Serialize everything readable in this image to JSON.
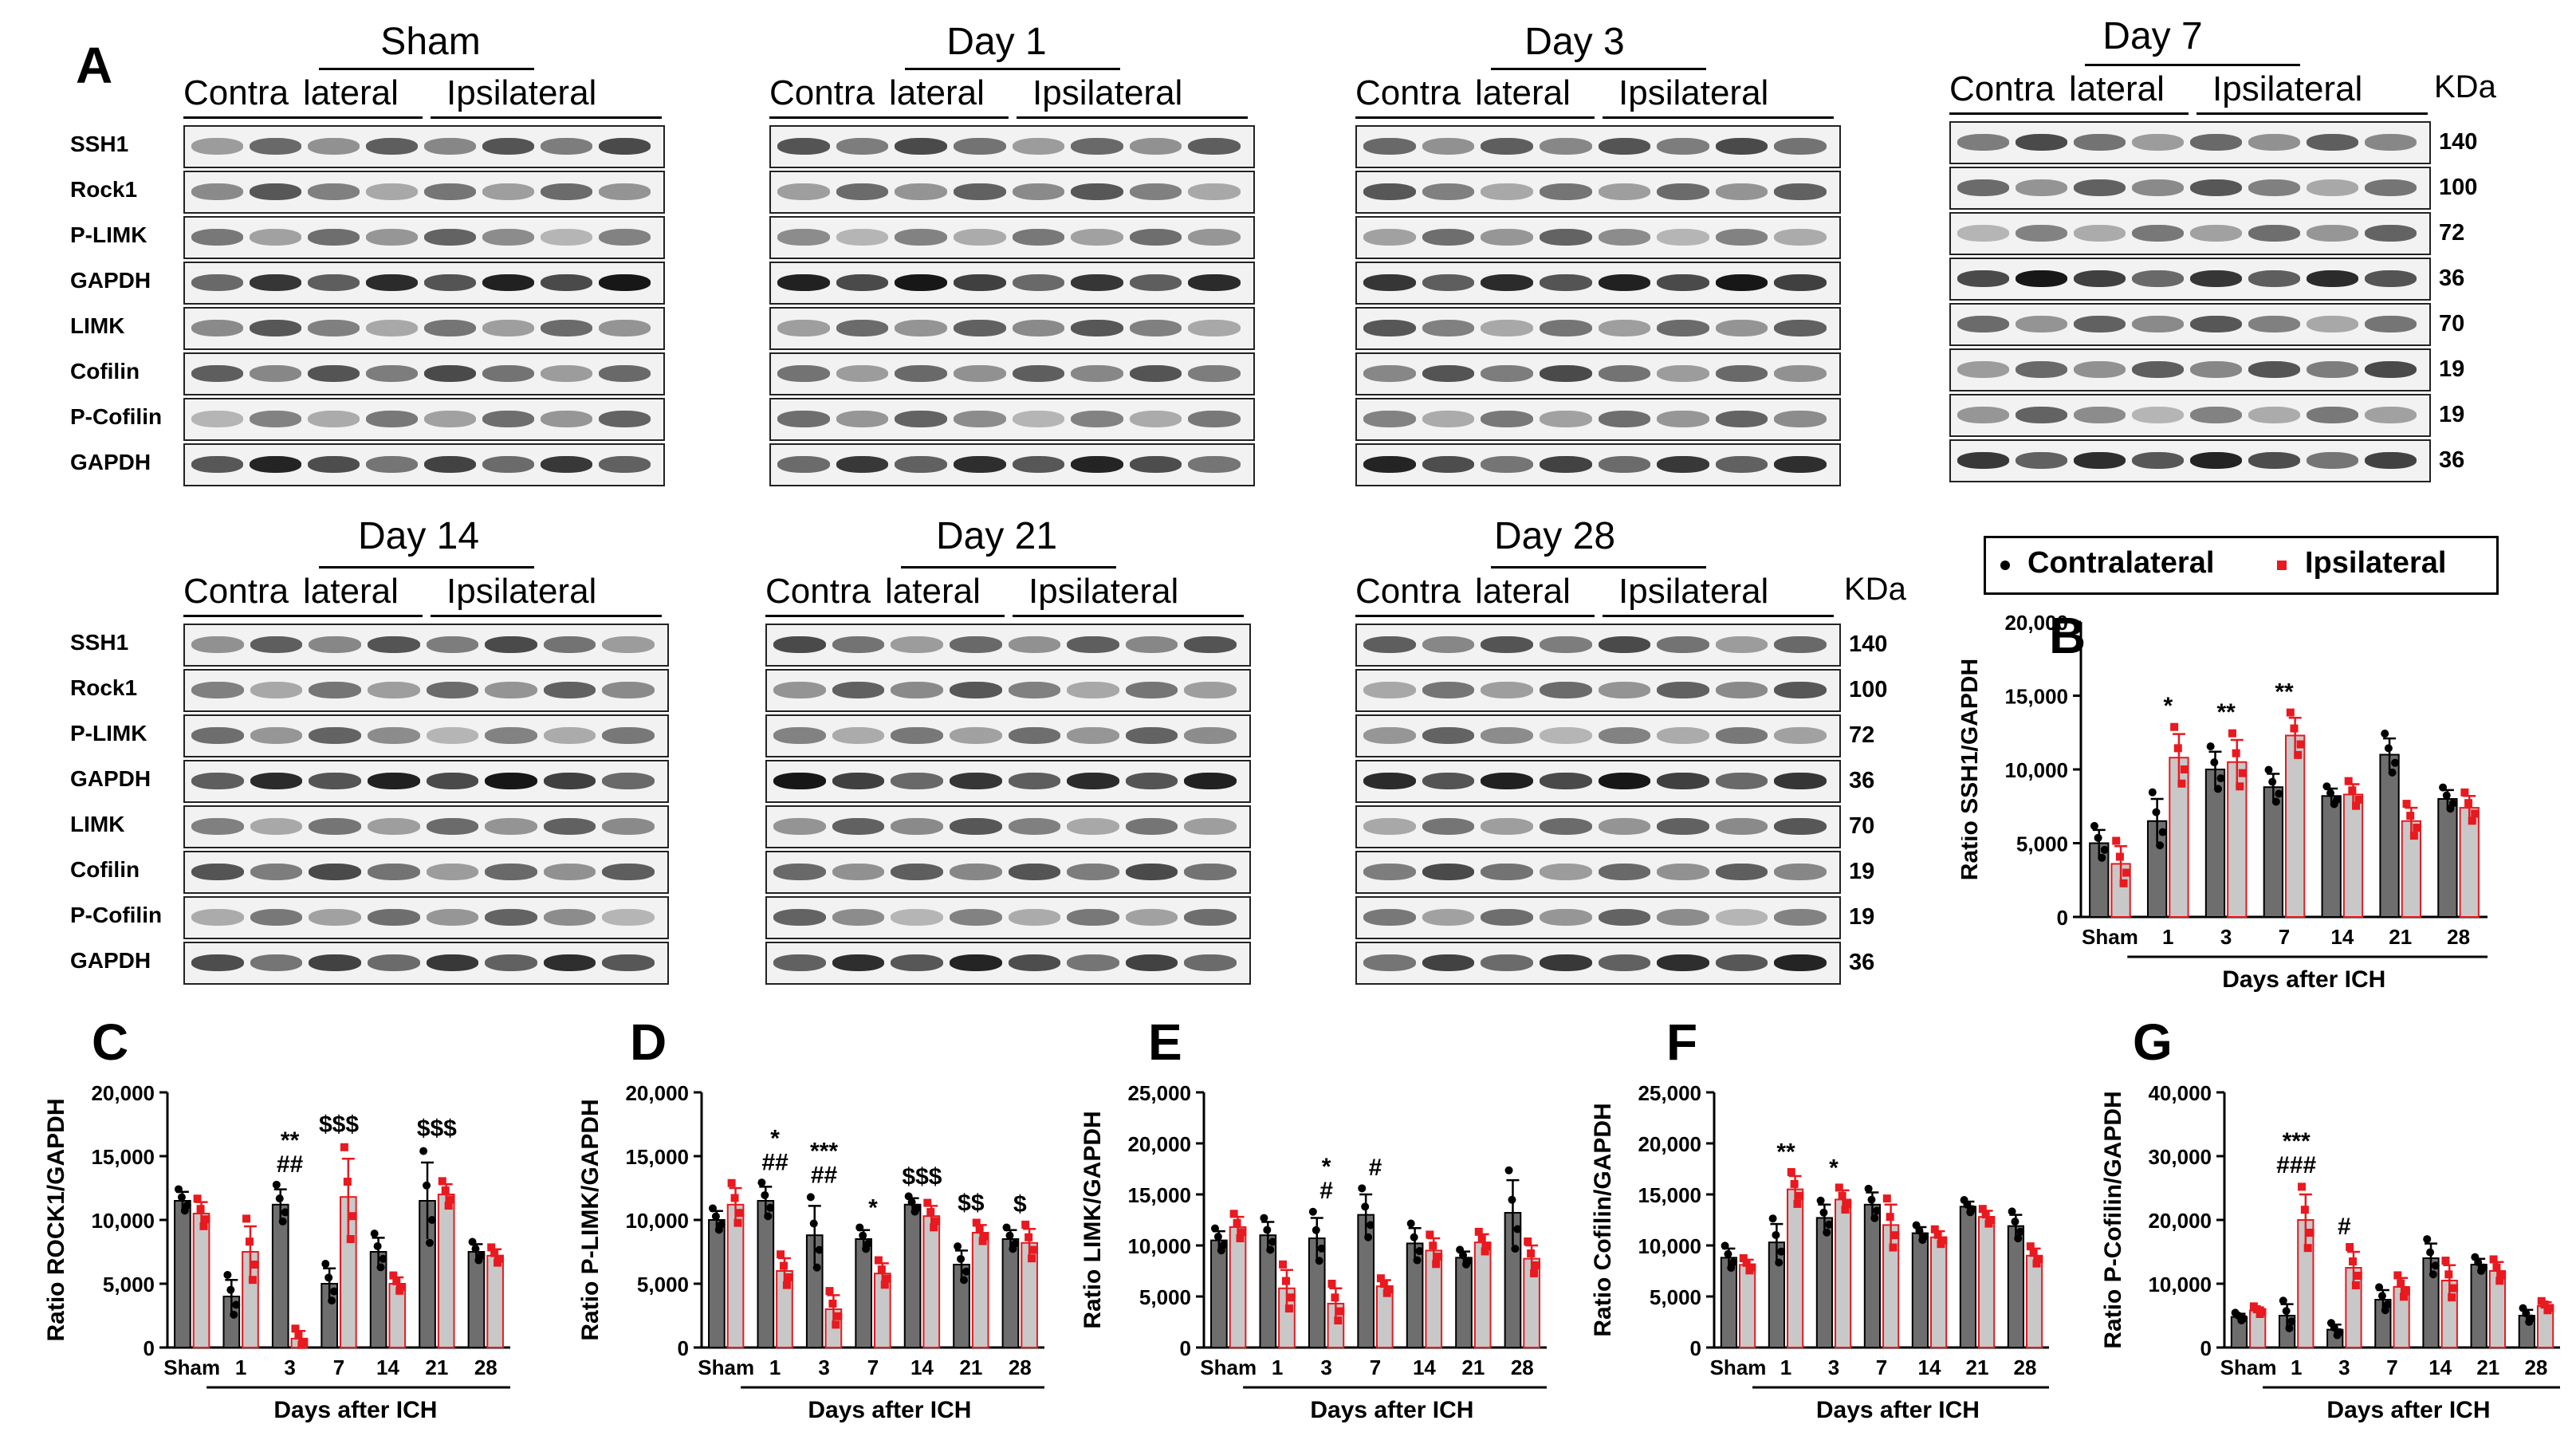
{
  "panel_A": {
    "letter": "A",
    "kda_header": "KDa",
    "blots": [
      {
        "title": "Sham",
        "left": "Contra",
        "mid": "lateral",
        "right": "Ipsilateral",
        "rows": [
          "SSH1",
          "Rock1",
          "P-LIMK",
          "GAPDH",
          "LIMK",
          "Cofilin",
          "P-Cofilin",
          "GAPDH"
        ],
        "kda": []
      },
      {
        "title": "Day 1",
        "left": "Contra",
        "mid": "lateral",
        "right": "Ipsilateral",
        "rows": [],
        "kda": []
      },
      {
        "title": "Day 3",
        "left": "Contra",
        "mid": "lateral",
        "right": "Ipsilateral",
        "rows": [],
        "kda": []
      },
      {
        "title": "Day 7",
        "left": "Contra",
        "mid": "lateral",
        "right": "Ipsilateral",
        "rows": [],
        "kda": [
          "140",
          "100",
          "72",
          "36",
          "70",
          "19",
          "19",
          "36"
        ]
      },
      {
        "title": "Day 14",
        "left": "Contra",
        "mid": "lateral",
        "right": "Ipsilateral",
        "rows": [
          "SSH1",
          "Rock1",
          "P-LIMK",
          "GAPDH",
          "LIMK",
          "Cofilin",
          "P-Cofilin",
          "GAPDH"
        ],
        "kda": []
      },
      {
        "title": "Day 21",
        "left": "Contra",
        "mid": "lateral",
        "right": "Ipsilateral",
        "rows": [],
        "kda": []
      },
      {
        "title": "Day 28",
        "left": "Contra",
        "mid": "lateral",
        "right": "Ipsilateral",
        "rows": [],
        "kda": [
          "140",
          "100",
          "72",
          "36",
          "70",
          "19",
          "19",
          "36"
        ]
      }
    ]
  },
  "legend": {
    "items": [
      {
        "label": "Contralateral",
        "color": "#000000",
        "marker": "circle"
      },
      {
        "label": "Ipsilateral",
        "color": "#e8191f",
        "marker": "square"
      }
    ]
  },
  "colors": {
    "contralateral_bar": "#6e6e6e",
    "ipsilateral_bar": "#c8c8c8",
    "ipsilateral_accent": "#e8191f"
  },
  "chart_data": [
    {
      "panel": "B",
      "type": "bar",
      "ylabel": "Ratio SSH1/GAPDH",
      "xlabel": "Days after ICH",
      "categories": [
        "Sham",
        "1",
        "3",
        "7",
        "14",
        "21",
        "28"
      ],
      "ylim": [
        0,
        20000
      ],
      "yticks": [
        "0",
        "5,000",
        "10,000",
        "15,000",
        "20,000"
      ],
      "series": [
        {
          "name": "Contralateral",
          "values": [
            5000,
            6500,
            10000,
            8800,
            8200,
            11000,
            8000
          ],
          "err": [
            900,
            1500,
            1200,
            900,
            500,
            1100,
            600
          ]
        },
        {
          "name": "Ipsilateral",
          "values": [
            3600,
            10800,
            10500,
            12300,
            8300,
            6500,
            7400
          ],
          "err": [
            1200,
            1600,
            1500,
            1200,
            700,
            900,
            800
          ]
        }
      ],
      "annotations": [
        {
          "category": "1",
          "text": "*"
        },
        {
          "category": "3",
          "text": "**"
        },
        {
          "category": "7",
          "text": "**"
        }
      ]
    },
    {
      "panel": "C",
      "type": "bar",
      "ylabel": "Ratio ROCK1/GAPDH",
      "xlabel": "Days after ICH",
      "categories": [
        "Sham",
        "1",
        "3",
        "7",
        "14",
        "21",
        "28"
      ],
      "ylim": [
        0,
        20000
      ],
      "yticks": [
        "0",
        "5,000",
        "10,000",
        "15,000",
        "20,000"
      ],
      "series": [
        {
          "name": "Contralateral",
          "values": [
            11500,
            4000,
            11200,
            5000,
            7500,
            11500,
            7500
          ],
          "err": [
            700,
            1300,
            1200,
            1200,
            1100,
            3000,
            600
          ]
        },
        {
          "name": "Ipsilateral",
          "values": [
            10500,
            7500,
            700,
            11800,
            5000,
            12000,
            7200
          ],
          "err": [
            900,
            2000,
            600,
            3000,
            500,
            800,
            500
          ]
        }
      ],
      "annotations": [
        {
          "category": "3",
          "text": "##"
        },
        {
          "category": "3",
          "text": "**"
        },
        {
          "category": "7",
          "text": "$$$"
        },
        {
          "category": "21",
          "text": "$$$"
        }
      ]
    },
    {
      "panel": "D",
      "type": "bar",
      "ylabel": "Ratio P-LIMK/GAPDH",
      "xlabel": "Days after ICH",
      "categories": [
        "Sham",
        "1",
        "3",
        "7",
        "14",
        "21",
        "28"
      ],
      "ylim": [
        0,
        20000
      ],
      "yticks": [
        "0",
        "5,000",
        "10,000",
        "15,000",
        "20,000"
      ],
      "series": [
        {
          "name": "Contralateral",
          "values": [
            10000,
            11500,
            8800,
            8500,
            11200,
            6500,
            8500
          ],
          "err": [
            700,
            1100,
            2300,
            700,
            500,
            1100,
            700
          ]
        },
        {
          "name": "Ipsilateral",
          "values": [
            11200,
            6000,
            3000,
            5800,
            10300,
            9000,
            8200
          ],
          "err": [
            1300,
            1000,
            1100,
            800,
            800,
            600,
            1100
          ]
        }
      ],
      "annotations": [
        {
          "category": "1",
          "text": "##"
        },
        {
          "category": "1",
          "text": "*"
        },
        {
          "category": "3",
          "text": "##"
        },
        {
          "category": "3",
          "text": "***"
        },
        {
          "category": "7",
          "text": "*"
        },
        {
          "category": "14",
          "text": "$$$"
        },
        {
          "category": "21",
          "text": "$$"
        },
        {
          "category": "28",
          "text": "$"
        }
      ]
    },
    {
      "panel": "E",
      "type": "bar",
      "ylabel": "Ratio LIMK/GAPDH",
      "xlabel": "Days after ICH",
      "categories": [
        "Sham",
        "1",
        "3",
        "7",
        "14",
        "21",
        "28"
      ],
      "ylim": [
        0,
        25000
      ],
      "yticks": [
        "0",
        "5,000",
        "10,000",
        "15,000",
        "20,000",
        "25,000"
      ],
      "series": [
        {
          "name": "Contralateral",
          "values": [
            10500,
            11000,
            10700,
            13000,
            10200,
            8800,
            13200
          ],
          "err": [
            900,
            1300,
            2000,
            2000,
            1500,
            600,
            3200
          ]
        },
        {
          "name": "Ipsilateral",
          "values": [
            11800,
            5800,
            4300,
            6000,
            9500,
            10300,
            8700
          ],
          "err": [
            1000,
            1800,
            1500,
            600,
            1200,
            800,
            1300
          ]
        }
      ],
      "annotations": [
        {
          "category": "3",
          "text": "#"
        },
        {
          "category": "3",
          "text": "*"
        },
        {
          "category": "7",
          "text": "#"
        }
      ]
    },
    {
      "panel": "F",
      "type": "bar",
      "ylabel": "Ratio Cofilin/GAPDH",
      "xlabel": "Days after ICH",
      "categories": [
        "Sham",
        "1",
        "3",
        "7",
        "14",
        "21",
        "28"
      ],
      "ylim": [
        0,
        25000
      ],
      "yticks": [
        "0",
        "5,000",
        "10,000",
        "15,000",
        "20,000",
        "25,000"
      ],
      "series": [
        {
          "name": "Contralateral",
          "values": [
            8800,
            10300,
            12700,
            14000,
            11200,
            13800,
            11900
          ],
          "err": [
            900,
            1800,
            1300,
            1200,
            600,
            500,
            1100
          ]
        },
        {
          "name": "Ipsilateral",
          "values": [
            8100,
            15500,
            14500,
            12000,
            10800,
            12800,
            9000
          ],
          "err": [
            500,
            1300,
            900,
            2000,
            600,
            600,
            700
          ]
        }
      ],
      "annotations": [
        {
          "category": "1",
          "text": "**"
        },
        {
          "category": "3",
          "text": "*"
        }
      ]
    },
    {
      "panel": "G",
      "type": "bar",
      "ylabel": "Ratio P-Cofilin/GAPDH",
      "xlabel": "Days after ICH",
      "categories": [
        "Sham",
        "1",
        "3",
        "7",
        "14",
        "21",
        "28"
      ],
      "ylim": [
        0,
        40000
      ],
      "yticks": [
        "0",
        "10,000",
        "20,000",
        "30,000",
        "40,000"
      ],
      "series": [
        {
          "name": "Contralateral",
          "values": [
            4800,
            5000,
            2800,
            7500,
            14000,
            13000,
            5000
          ],
          "err": [
            500,
            1800,
            800,
            1500,
            2300,
            900,
            900
          ]
        },
        {
          "name": "Ipsilateral",
          "values": [
            5800,
            20000,
            12500,
            9500,
            10500,
            12000,
            6500
          ],
          "err": [
            500,
            4000,
            2500,
            1400,
            2400,
            1400,
            600
          ]
        }
      ],
      "annotations": [
        {
          "category": "1",
          "text": "###"
        },
        {
          "category": "1",
          "text": "***"
        },
        {
          "category": "3",
          "text": "#"
        }
      ]
    }
  ]
}
